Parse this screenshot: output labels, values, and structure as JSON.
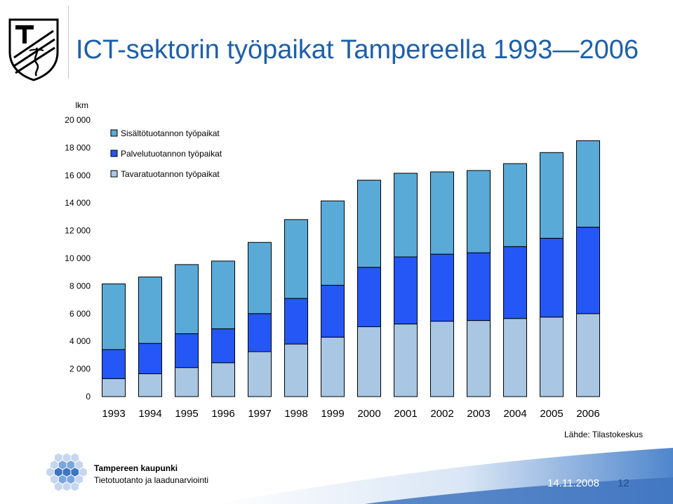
{
  "header": {
    "title": "ICT-sektorin työpaikat Tampereella 1993—2006"
  },
  "chart_data": {
    "type": "bar",
    "stacked": true,
    "ylabel": "lkm",
    "ylim": [
      0,
      20000
    ],
    "yticks": [
      0,
      2000,
      4000,
      6000,
      8000,
      10000,
      12000,
      14000,
      16000,
      18000,
      20000
    ],
    "ytick_labels": [
      "0",
      "2 000",
      "4 000",
      "6 000",
      "8 000",
      "10 000",
      "12 000",
      "14 000",
      "16 000",
      "18 000",
      "20 000"
    ],
    "grid": false,
    "legend_position": "top-left",
    "categories": [
      "1993",
      "1994",
      "1995",
      "1996",
      "1997",
      "1998",
      "1999",
      "2000",
      "2001",
      "2002",
      "2003",
      "2004",
      "2005",
      "2006"
    ],
    "series": [
      {
        "name": "Tavaratuotannon työpaikat",
        "color": "#a9c7e3",
        "values": [
          1300,
          1650,
          2100,
          2450,
          3250,
          3800,
          4300,
          5050,
          5250,
          5450,
          5500,
          5650,
          5750,
          6000
        ]
      },
      {
        "name": "Palvelutuotannon työpaikat",
        "color": "#2457f5",
        "values": [
          2100,
          2200,
          2450,
          2450,
          2750,
          3300,
          3750,
          4300,
          4850,
          4850,
          4900,
          5200,
          5700,
          6250
        ]
      },
      {
        "name": "Sisältötuotannon työpaikat",
        "color": "#5aaad8",
        "values": [
          4750,
          4800,
          5000,
          4900,
          5150,
          5700,
          6100,
          6300,
          6050,
          5950,
          5950,
          6000,
          6200,
          6250
        ]
      }
    ],
    "legend_order": [
      "Sisältötuotannon työpaikat",
      "Palvelutuotannon työpaikat",
      "Tavaratuotannon työpaikat"
    ]
  },
  "footer": {
    "source": "Lähde: Tilastokeskus",
    "org": "Tampereen kaupunki",
    "dept": "Tietotuotanto ja laadunarviointi",
    "date": "14.11.2008",
    "page": "12"
  },
  "colors": {
    "title": "#1f5fa8",
    "footer_band": "#5a8fd0"
  }
}
